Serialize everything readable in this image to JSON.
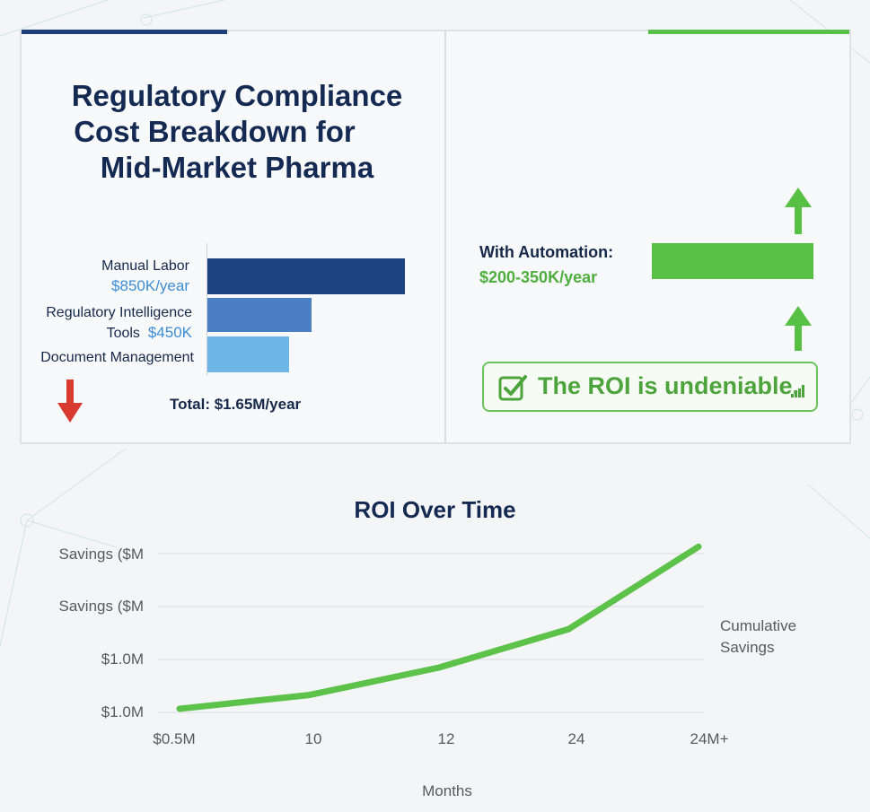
{
  "infographic": {
    "title_lines": [
      "Regulatory Compliance",
      "Cost Breakdown for",
      "Mid-Market Pharma"
    ],
    "cost_items": [
      {
        "label": "Manual Labor",
        "value": "$850K/year",
        "amount_k": 850,
        "color": "#1d4480"
      },
      {
        "label_lines": [
          "Regulatory Intelligence",
          "Tools"
        ],
        "value": "$450K",
        "amount_k": 450,
        "color": "#4a7fc3"
      },
      {
        "label": "Document Management",
        "amount_k": 350,
        "color": "#6fb6e8"
      }
    ],
    "total": "Total: $1.65M/year",
    "automation": {
      "label": "With Automation:",
      "value": "$200-350K/year",
      "color": "#57c045"
    },
    "roi_message": "The ROI is undeniable.",
    "icons": [
      "red-down-arrow-icon",
      "green-up-arrow-icon",
      "checkbox-icon",
      "mini-bars-icon"
    ]
  },
  "chart_data": {
    "type": "line",
    "title": "ROI Over Time",
    "xlabel": "Months",
    "x_tick_labels": [
      "$0.5M",
      "10",
      "12",
      "24",
      "24M+"
    ],
    "y_tick_labels": [
      "Savings ($M",
      "Savings ($M",
      "$1.0M",
      "$1.0M"
    ],
    "series": [
      {
        "name": "Cumulative Savings",
        "color": "#5cc24a",
        "values": [
          0.05,
          0.3,
          0.8,
          1.5,
          3.0
        ]
      }
    ],
    "ylim": [
      0,
      3.2
    ],
    "grid": true,
    "legend": "right"
  }
}
